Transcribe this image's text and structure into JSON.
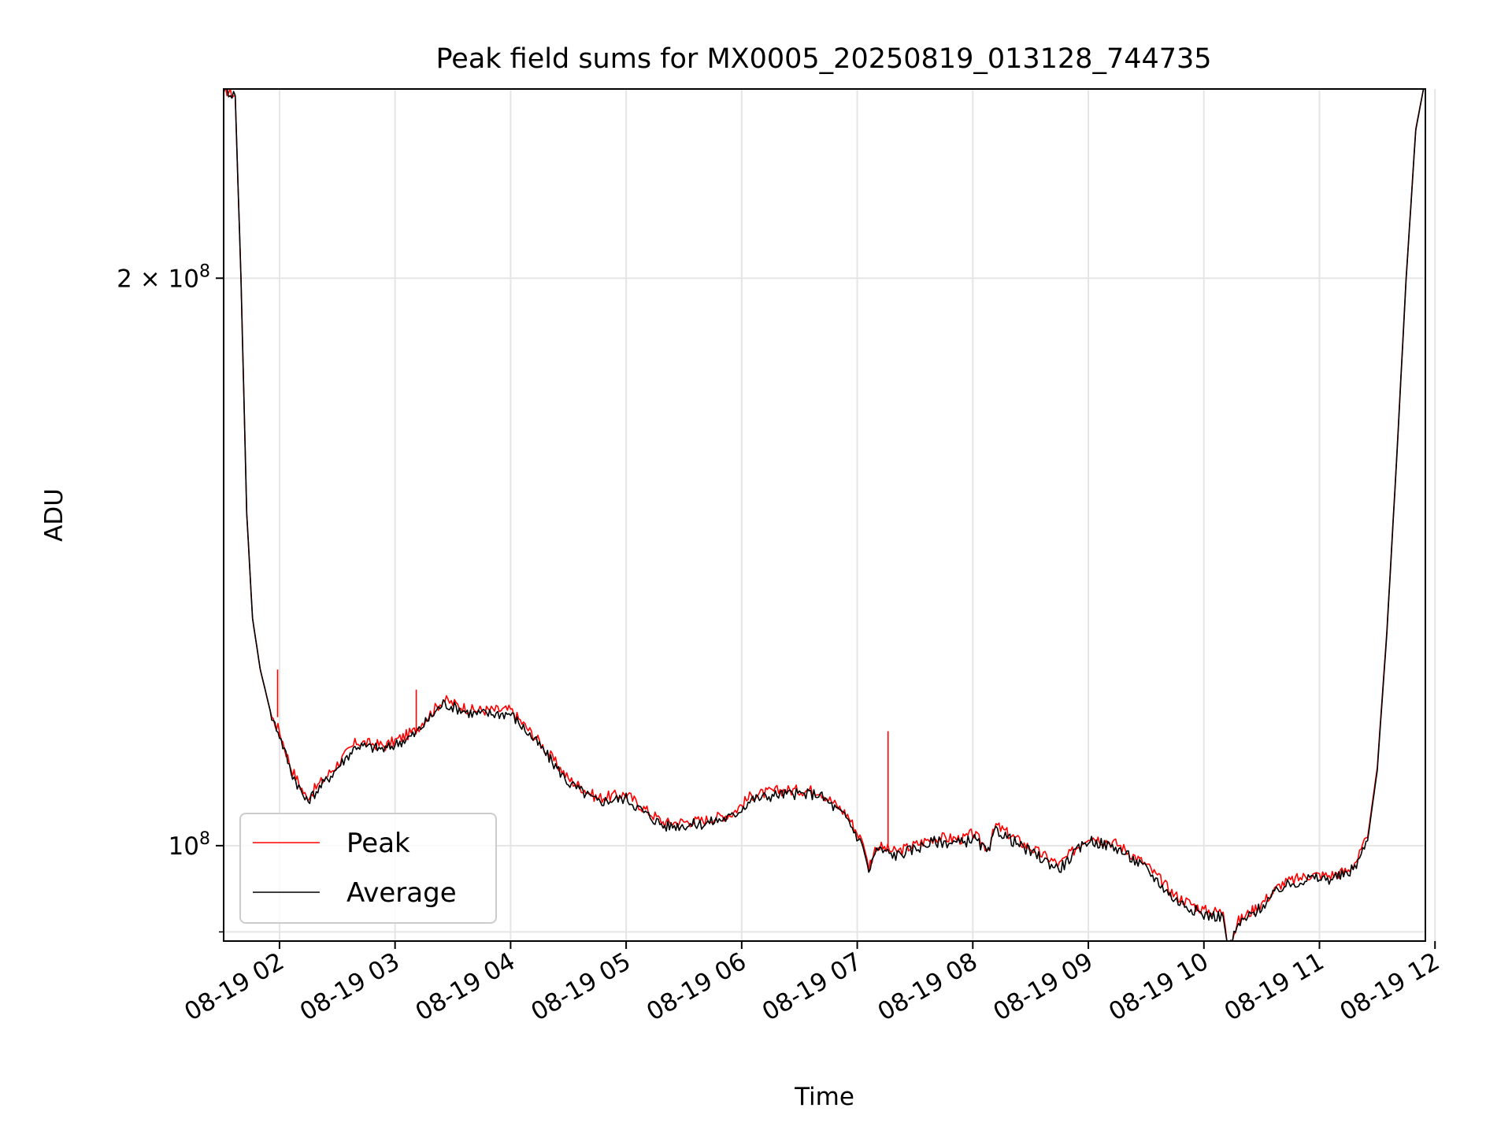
{
  "chart_data": {
    "type": "line",
    "title": "Peak field sums for MX0005_20250819_013128_744735",
    "xlabel": "Time",
    "ylabel": "ADU",
    "y_scale": "log",
    "grid": true,
    "legend_position": "lower-left",
    "xlim": [
      "2025-08-19 01:31",
      "2025-08-19 11:55"
    ],
    "ylim": [
      89000000.0,
      252000000.0
    ],
    "x_ticks": [
      "08-19 02",
      "08-19 03",
      "08-19 04",
      "08-19 05",
      "08-19 06",
      "08-19 07",
      "08-19 08",
      "08-19 09",
      "08-19 10",
      "08-19 11",
      "08-19 12"
    ],
    "x_tick_times": [
      "2025-08-19 02:00",
      "2025-08-19 03:00",
      "2025-08-19 04:00",
      "2025-08-19 05:00",
      "2025-08-19 06:00",
      "2025-08-19 07:00",
      "2025-08-19 08:00",
      "2025-08-19 09:00",
      "2025-08-19 10:00",
      "2025-08-19 11:00",
      "2025-08-19 12:00"
    ],
    "y_major_ticks": [
      {
        "value": 200000000,
        "label_base": "2 × 10",
        "label_exp": "8"
      },
      {
        "value": 100000000,
        "label_base": "10",
        "label_exp": "8"
      }
    ],
    "y_minor_ticks": [
      90000000
    ],
    "x": [
      "2025-08-19 01:31",
      "2025-08-19 01:37",
      "2025-08-19 01:40",
      "2025-08-19 01:43",
      "2025-08-19 01:46",
      "2025-08-19 01:50",
      "2025-08-19 01:56",
      "2025-08-19 02:00",
      "2025-08-19 02:06",
      "2025-08-19 02:14",
      "2025-08-19 02:25",
      "2025-08-19 02:40",
      "2025-08-19 02:55",
      "2025-08-19 03:10",
      "2025-08-19 03:25",
      "2025-08-19 03:40",
      "2025-08-19 04:00",
      "2025-08-19 04:15",
      "2025-08-19 04:30",
      "2025-08-19 04:45",
      "2025-08-19 05:00",
      "2025-08-19 05:10",
      "2025-08-19 05:20",
      "2025-08-19 05:40",
      "2025-08-19 05:55",
      "2025-08-19 06:05",
      "2025-08-19 06:20",
      "2025-08-19 06:40",
      "2025-08-19 06:55",
      "2025-08-19 07:03",
      "2025-08-19 07:06",
      "2025-08-19 07:10",
      "2025-08-19 07:20",
      "2025-08-19 07:40",
      "2025-08-19 07:55",
      "2025-08-19 08:00",
      "2025-08-19 08:08",
      "2025-08-19 08:12",
      "2025-08-19 08:25",
      "2025-08-19 08:45",
      "2025-08-19 09:00",
      "2025-08-19 09:15",
      "2025-08-19 09:30",
      "2025-08-19 09:45",
      "2025-08-19 10:00",
      "2025-08-19 10:10",
      "2025-08-19 10:12",
      "2025-08-19 10:14",
      "2025-08-19 10:18",
      "2025-08-19 10:30",
      "2025-08-19 10:40",
      "2025-08-19 10:55",
      "2025-08-19 11:05",
      "2025-08-19 11:15",
      "2025-08-19 11:20",
      "2025-08-19 11:25",
      "2025-08-19 11:30",
      "2025-08-19 11:35",
      "2025-08-19 11:40",
      "2025-08-19 11:45",
      "2025-08-19 11:50",
      "2025-08-19 11:54"
    ],
    "series": [
      {
        "name": "Peak",
        "color": "#ff0000",
        "values": [
          252000000,
          250000000,
          200000000,
          150000000,
          132000000,
          124000000,
          117000000,
          115000000,
          110000000,
          106000000,
          109000000,
          113500000,
          113000000,
          115000000,
          119500000,
          118000000,
          118000000,
          113500000,
          108500000,
          106000000,
          106500000,
          104500000,
          102800000,
          103100000,
          104000000,
          106300000,
          107000000,
          107000000,
          103800000,
          100300000,
          97500000,
          100000000,
          99200000,
          101000000,
          100800000,
          101500000,
          99600000,
          102500000,
          100400000,
          97700000,
          101200000,
          100200000,
          97700000,
          94100000,
          92400000,
          92200000,
          89200000,
          89000000,
          91200000,
          93200000,
          95400000,
          96500000,
          96400000,
          97000000,
          98500000,
          101000000,
          110000000,
          130000000,
          160000000,
          200000000,
          240000000,
          252000000
        ]
      },
      {
        "name": "Average",
        "color": "#000000",
        "values": [
          252000000,
          250000000,
          200000000,
          150000000,
          132000000,
          124000000,
          117000000,
          114500000,
          109500000,
          105500000,
          108500000,
          113000000,
          112500000,
          114500000,
          119000000,
          117500000,
          117500000,
          113000000,
          108000000,
          105500000,
          106000000,
          104000000,
          102400000,
          102700000,
          103600000,
          105800000,
          106500000,
          106500000,
          103300000,
          99800000,
          97000000,
          99600000,
          98800000,
          100500000,
          100300000,
          101000000,
          99100000,
          102000000,
          99900000,
          97200000,
          100700000,
          99700000,
          97200000,
          93600000,
          91900000,
          91700000,
          88800000,
          88700000,
          90800000,
          92800000,
          95000000,
          96100000,
          96000000,
          96600000,
          98100000,
          100600000,
          109600000,
          129600000,
          159600000,
          199600000,
          239600000,
          252000000
        ]
      }
    ],
    "spikes": [
      {
        "series": "Peak",
        "x": "2025-08-19 01:59",
        "value": 124000000
      },
      {
        "series": "Peak",
        "x": "2025-08-19 03:11",
        "value": 121000000
      },
      {
        "series": "Peak",
        "x": "2025-08-19 07:16",
        "value": 115000000
      }
    ],
    "legend": [
      {
        "label": "Peak",
        "color": "#ff0000"
      },
      {
        "label": "Average",
        "color": "#000000"
      }
    ]
  }
}
